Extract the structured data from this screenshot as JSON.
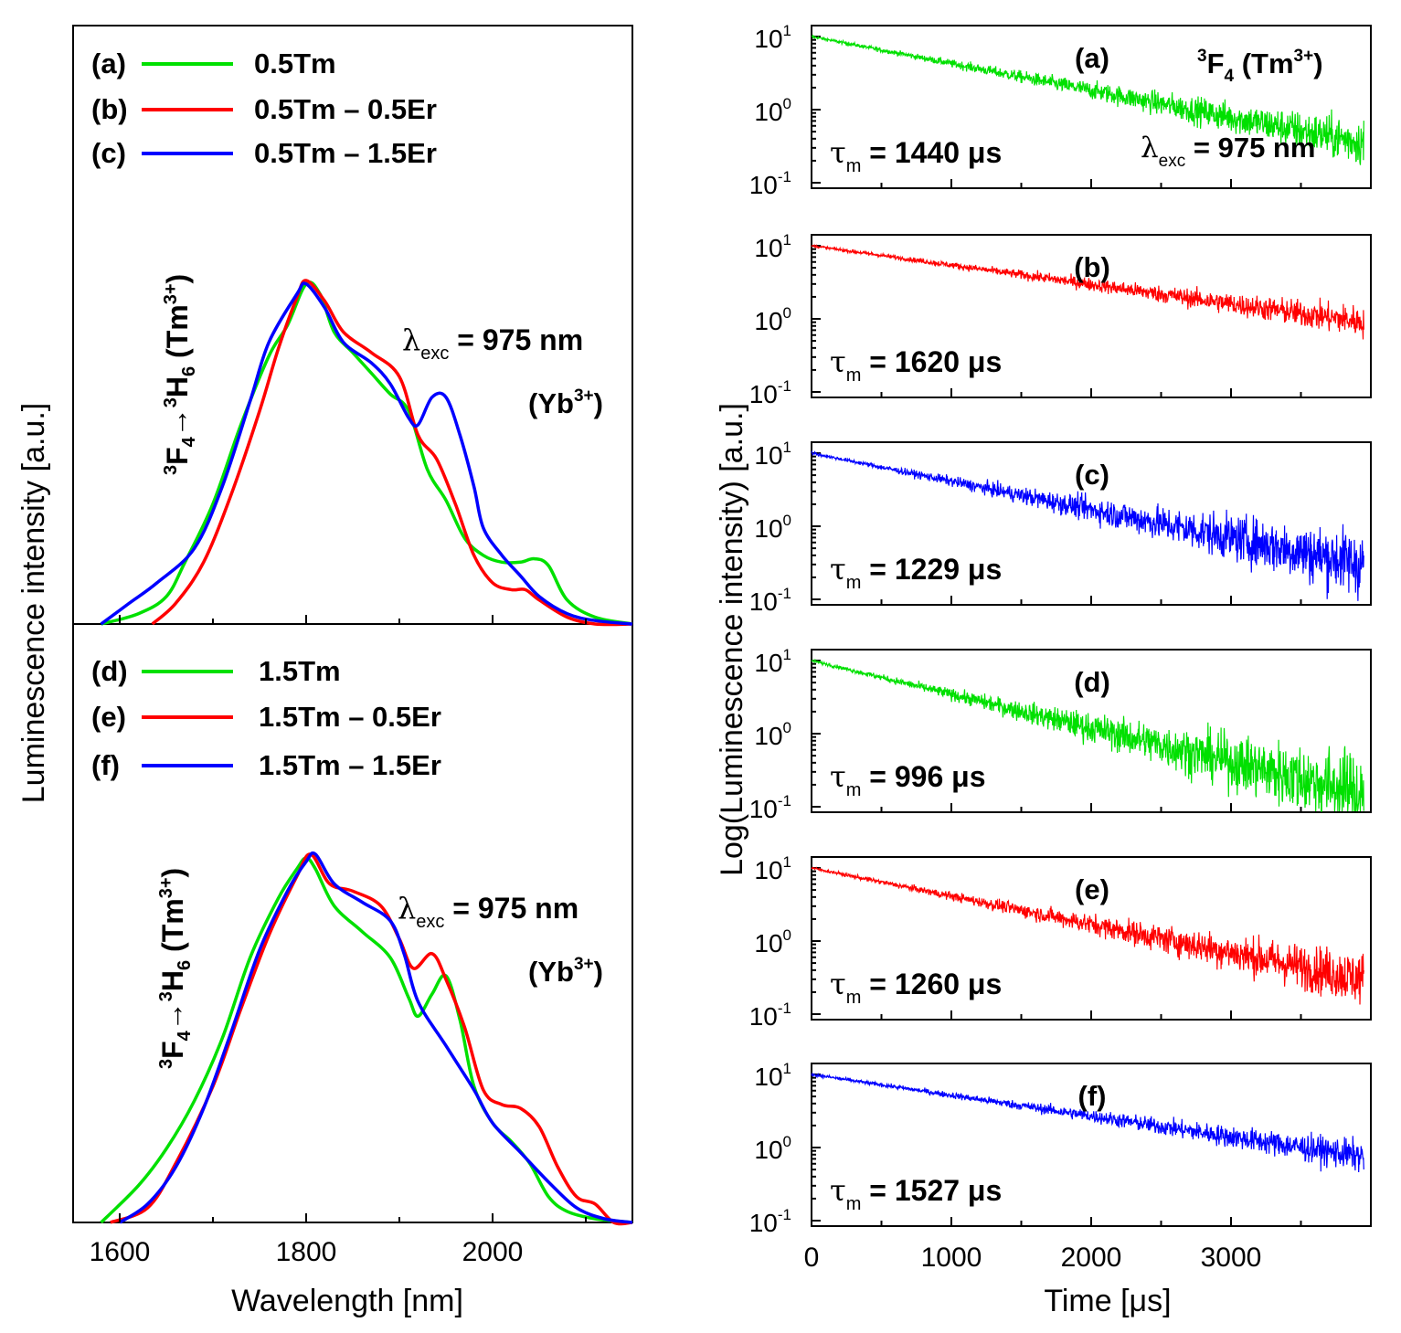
{
  "chart_data": [
    {
      "type": "line",
      "panel": "emission-top",
      "xlim": [
        1550,
        2150
      ],
      "xticks": [
        1600,
        1800,
        2000
      ],
      "series": [
        {
          "label": "(a)",
          "name": "0.5Tm",
          "color": "#00e000",
          "points": [
            [
              1580,
              0
            ],
            [
              1620,
              0.03
            ],
            [
              1650,
              0.08
            ],
            [
              1670,
              0.18
            ],
            [
              1700,
              0.35
            ],
            [
              1730,
              0.58
            ],
            [
              1760,
              0.78
            ],
            [
              1780,
              0.87
            ],
            [
              1800,
              0.99
            ],
            [
              1815,
              0.96
            ],
            [
              1830,
              0.85
            ],
            [
              1850,
              0.79
            ],
            [
              1870,
              0.73
            ],
            [
              1890,
              0.67
            ],
            [
              1910,
              0.62
            ],
            [
              1930,
              0.45
            ],
            [
              1950,
              0.36
            ],
            [
              1970,
              0.25
            ],
            [
              1990,
              0.2
            ],
            [
              2010,
              0.18
            ],
            [
              2030,
              0.18
            ],
            [
              2045,
              0.19
            ],
            [
              2060,
              0.17
            ],
            [
              2080,
              0.07
            ],
            [
              2110,
              0.02
            ],
            [
              2150,
              0
            ]
          ]
        },
        {
          "label": "(b)",
          "name": "0.5Tm – 0.5Er",
          "color": "#ff0000",
          "points": [
            [
              1635,
              0
            ],
            [
              1660,
              0.06
            ],
            [
              1690,
              0.18
            ],
            [
              1720,
              0.38
            ],
            [
              1750,
              0.62
            ],
            [
              1770,
              0.8
            ],
            [
              1790,
              0.95
            ],
            [
              1800,
              1.0
            ],
            [
              1820,
              0.94
            ],
            [
              1840,
              0.85
            ],
            [
              1870,
              0.79
            ],
            [
              1900,
              0.72
            ],
            [
              1920,
              0.55
            ],
            [
              1940,
              0.48
            ],
            [
              1960,
              0.35
            ],
            [
              1980,
              0.2
            ],
            [
              2000,
              0.12
            ],
            [
              2020,
              0.1
            ],
            [
              2035,
              0.1
            ],
            [
              2050,
              0.07
            ],
            [
              2080,
              0.02
            ],
            [
              2110,
              0
            ],
            [
              2150,
              0
            ]
          ]
        },
        {
          "label": "(c)",
          "name": "0.5Tm – 1.5Er",
          "color": "#0000ff",
          "points": [
            [
              1580,
              0
            ],
            [
              1610,
              0.06
            ],
            [
              1640,
              0.12
            ],
            [
              1680,
              0.22
            ],
            [
              1710,
              0.4
            ],
            [
              1740,
              0.65
            ],
            [
              1760,
              0.82
            ],
            [
              1790,
              0.96
            ],
            [
              1800,
              0.99
            ],
            [
              1820,
              0.92
            ],
            [
              1840,
              0.82
            ],
            [
              1870,
              0.76
            ],
            [
              1890,
              0.7
            ],
            [
              1910,
              0.6
            ],
            [
              1920,
              0.58
            ],
            [
              1935,
              0.66
            ],
            [
              1950,
              0.66
            ],
            [
              1965,
              0.55
            ],
            [
              1980,
              0.4
            ],
            [
              1990,
              0.28
            ],
            [
              2010,
              0.2
            ],
            [
              2030,
              0.14
            ],
            [
              2050,
              0.08
            ],
            [
              2080,
              0.03
            ],
            [
              2110,
              0.01
            ],
            [
              2150,
              0
            ]
          ]
        }
      ],
      "annotation_lambda": "975 nm",
      "annotation_source": "(Yb",
      "transition_label": {
        "from": "F",
        "from_sup": "3",
        "from_sub": "4",
        "to": "H",
        "to_sup": "3",
        "to_sub": "6",
        "ion": "(Tm",
        "ion_sup": "3+"
      }
    },
    {
      "type": "line",
      "panel": "emission-bottom",
      "xlim": [
        1550,
        2150
      ],
      "xticks": [
        1600,
        1800,
        2000
      ],
      "xlabel": "Wavelength [nm]",
      "ylabel": "Luminescence intensity [a.u.]",
      "series": [
        {
          "label": "(d)",
          "name": "1.5Tm",
          "color": "#00e000",
          "points": [
            [
              1580,
              0
            ],
            [
              1620,
              0.1
            ],
            [
              1650,
              0.2
            ],
            [
              1680,
              0.33
            ],
            [
              1710,
              0.5
            ],
            [
              1740,
              0.72
            ],
            [
              1770,
              0.88
            ],
            [
              1790,
              0.96
            ],
            [
              1800,
              0.99
            ],
            [
              1810,
              0.96
            ],
            [
              1830,
              0.86
            ],
            [
              1860,
              0.79
            ],
            [
              1890,
              0.72
            ],
            [
              1910,
              0.61
            ],
            [
              1920,
              0.56
            ],
            [
              1935,
              0.62
            ],
            [
              1950,
              0.67
            ],
            [
              1965,
              0.55
            ],
            [
              1980,
              0.37
            ],
            [
              2000,
              0.27
            ],
            [
              2020,
              0.22
            ],
            [
              2040,
              0.16
            ],
            [
              2060,
              0.07
            ],
            [
              2080,
              0.03
            ],
            [
              2110,
              0.01
            ],
            [
              2150,
              0
            ]
          ]
        },
        {
          "label": "(e)",
          "name": "1.5Tm – 0.5Er",
          "color": "#ff0000",
          "points": [
            [
              1590,
              0
            ],
            [
              1630,
              0.04
            ],
            [
              1660,
              0.16
            ],
            [
              1700,
              0.37
            ],
            [
              1730,
              0.58
            ],
            [
              1760,
              0.78
            ],
            [
              1790,
              0.94
            ],
            [
              1805,
              1.0
            ],
            [
              1825,
              0.92
            ],
            [
              1850,
              0.9
            ],
            [
              1880,
              0.86
            ],
            [
              1900,
              0.77
            ],
            [
              1915,
              0.69
            ],
            [
              1935,
              0.73
            ],
            [
              1950,
              0.66
            ],
            [
              1970,
              0.53
            ],
            [
              1990,
              0.36
            ],
            [
              2010,
              0.32
            ],
            [
              2030,
              0.31
            ],
            [
              2050,
              0.26
            ],
            [
              2070,
              0.15
            ],
            [
              2090,
              0.07
            ],
            [
              2110,
              0.05
            ],
            [
              2130,
              0
            ],
            [
              2150,
              0
            ]
          ]
        },
        {
          "label": "(f)",
          "name": "1.5Tm – 1.5Er",
          "color": "#0000ff",
          "points": [
            [
              1600,
              0
            ],
            [
              1630,
              0.05
            ],
            [
              1660,
              0.15
            ],
            [
              1690,
              0.31
            ],
            [
              1720,
              0.52
            ],
            [
              1750,
              0.74
            ],
            [
              1780,
              0.9
            ],
            [
              1800,
              0.98
            ],
            [
              1810,
              1.0
            ],
            [
              1830,
              0.92
            ],
            [
              1860,
              0.87
            ],
            [
              1890,
              0.82
            ],
            [
              1905,
              0.73
            ],
            [
              1920,
              0.6
            ],
            [
              1950,
              0.48
            ],
            [
              1980,
              0.36
            ],
            [
              2000,
              0.27
            ],
            [
              2030,
              0.19
            ],
            [
              2060,
              0.11
            ],
            [
              2090,
              0.04
            ],
            [
              2120,
              0.01
            ],
            [
              2150,
              0
            ]
          ]
        }
      ],
      "annotation_lambda": "975 nm",
      "annotation_source": "(Yb",
      "transition_label": {
        "from": "F",
        "from_sup": "3",
        "from_sub": "4",
        "to": "H",
        "to_sup": "3",
        "to_sub": "6",
        "ion": "(Tm",
        "ion_sup": "3+"
      }
    },
    {
      "type": "line",
      "panel": "decay-stack",
      "yscale": "log",
      "xlim": [
        0,
        4000
      ],
      "ylim": [
        0.1,
        10
      ],
      "xticks": [
        0,
        1000,
        2000,
        3000
      ],
      "xlabel": "Time [μs]",
      "ylabel": "Log(Luminescence intensity) [a.u.]",
      "ytick_base": "10",
      "ytick_exponents": [
        "1",
        "0",
        "-1"
      ],
      "series": [
        {
          "label": "(a)",
          "color": "#00e000",
          "tau_label": "= 1440",
          "tau_value_us": 1440,
          "start": 10,
          "end": 0.35,
          "noise": 0.3
        },
        {
          "label": "(b)",
          "color": "#ff0000",
          "tau_label": "= 1620",
          "tau_value_us": 1620,
          "start": 10,
          "end": 0.9,
          "noise": 0.2
        },
        {
          "label": "(c)",
          "color": "#0000ff",
          "tau_label": "= 1229",
          "tau_value_us": 1229,
          "start": 10,
          "end": 0.3,
          "noise": 0.45
        },
        {
          "label": "(d)",
          "color": "#00e000",
          "tau_label": "= 996",
          "tau_value_us": 996,
          "start": 10,
          "end": 0.15,
          "noise": 0.55
        },
        {
          "label": "(e)",
          "color": "#ff0000",
          "tau_label": "= 1260",
          "tau_value_us": 1260,
          "start": 10,
          "end": 0.3,
          "noise": 0.35
        },
        {
          "label": "(f)",
          "color": "#0000ff",
          "tau_label": "= 1527",
          "tau_value_us": 1527,
          "start": 10,
          "end": 0.75,
          "noise": 0.2
        }
      ],
      "header_state": {
        "level": "F",
        "level_sup": "3",
        "level_sub": "4",
        "ion": "(Tm",
        "ion_sup": "3+"
      },
      "excitation": "975 nm"
    }
  ],
  "symbols": {
    "tau": "τ",
    "tau_sub": "m",
    "mu_s": "μs",
    "lambda": "λ",
    "lambda_sub": "exc",
    "equals": "=",
    "close_paren": ")",
    "arrow": "→"
  }
}
